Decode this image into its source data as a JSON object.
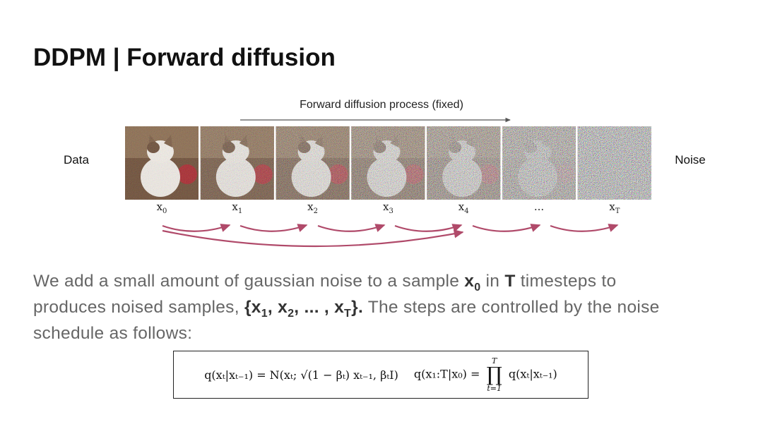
{
  "header": {
    "title": "DDPM | Forward diffusion"
  },
  "diagram": {
    "process_label": "Forward diffusion process (fixed)",
    "left_label": "Data",
    "right_label": "Noise",
    "steps": [
      {
        "base": "x",
        "sub": "0"
      },
      {
        "base": "x",
        "sub": "1"
      },
      {
        "base": "x",
        "sub": "2"
      },
      {
        "base": "x",
        "sub": "3"
      },
      {
        "base": "x",
        "sub": "4"
      },
      {
        "base": "..."
      },
      {
        "base": "x",
        "sub": "T"
      }
    ]
  },
  "paragraph": {
    "lines": [
      [
        {
          "text": "We add a small amount of gaussian noise to a sample "
        },
        {
          "text": "x",
          "bold": true
        },
        {
          "text": "0",
          "bold": true,
          "sub": true
        },
        {
          "text": " in "
        },
        {
          "text": "T",
          "bold": true
        },
        {
          "text": " timesteps to"
        }
      ],
      [
        {
          "text": "produces noised samples, "
        },
        {
          "text": "{x",
          "bold": true
        },
        {
          "text": "1",
          "bold": true,
          "sub": true
        },
        {
          "text": ", x",
          "bold": true
        },
        {
          "text": "2",
          "bold": true,
          "sub": true
        },
        {
          "text": ", ... , x",
          "bold": true
        },
        {
          "text": "T",
          "bold": true,
          "sub": true
        },
        {
          "text": "}.",
          "bold": true
        },
        {
          "text": " The steps are controlled by the noise"
        }
      ],
      [
        {
          "text": "schedule as follows:"
        }
      ]
    ]
  },
  "formula": {
    "left": "q(xₜ|xₜ₋₁) = N(xₜ; √(1 − βₜ) xₜ₋₁, βₜI)",
    "right_lhs": "q(x₁:T|x₀) =",
    "product": "∏",
    "upper": "T",
    "lower": "t=1",
    "right_rhs": "q(xₜ|xₜ₋₁)"
  }
}
